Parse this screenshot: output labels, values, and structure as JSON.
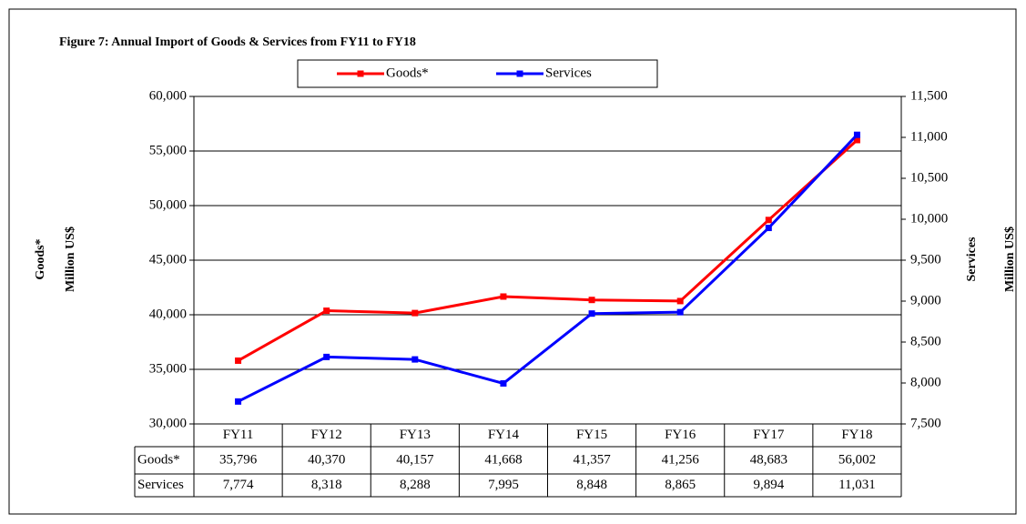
{
  "chart_data": {
    "type": "line",
    "title": "Figure 7: Annual Import of Goods & Services  from  FY11  to FY18",
    "ylabel": "Goods*",
    "ylabel_unit": "Million US$",
    "y2label": "Services",
    "y2label_unit": "Million US$",
    "categories": [
      "FY11",
      "FY12",
      "FY13",
      "FY14",
      "FY15",
      "FY16",
      "FY17",
      "FY18"
    ],
    "series": [
      {
        "name": "Goods*",
        "color": "#ff0000",
        "values": [
          35796,
          40370,
          40157,
          41668,
          41357,
          41256,
          48683,
          56002
        ],
        "value_labels": [
          "35,796",
          "40,370",
          "40,157",
          "41,668",
          "41,357",
          "41,256",
          "48,683",
          "56,002"
        ]
      },
      {
        "name": "Services",
        "color": "#0000ff",
        "axis": "y2",
        "values": [
          7774,
          8318,
          8288,
          7995,
          8848,
          8865,
          9894,
          11031
        ],
        "value_labels": [
          "7,774",
          "8,318",
          "8,288",
          "7,995",
          "8,848",
          "8,865",
          "9,894",
          "11,031"
        ]
      }
    ],
    "ylim": [
      30000,
      60000
    ],
    "yticks": [
      {
        "value": 30000,
        "label": "30,000"
      },
      {
        "value": 35000,
        "label": "35,000"
      },
      {
        "value": 40000,
        "label": "40,000"
      },
      {
        "value": 45000,
        "label": "45,000"
      },
      {
        "value": 50000,
        "label": "50,000"
      },
      {
        "value": 55000,
        "label": "55,000"
      },
      {
        "value": 60000,
        "label": "60,000"
      }
    ],
    "y2lim": [
      7500,
      11500
    ],
    "y2ticks": [
      {
        "value": 7500,
        "label": "7,500"
      },
      {
        "value": 8000,
        "label": "8,000"
      },
      {
        "value": 8500,
        "label": "8,500"
      },
      {
        "value": 9000,
        "label": "9,000"
      },
      {
        "value": 9500,
        "label": "9,500"
      },
      {
        "value": 10000,
        "label": "10,000"
      },
      {
        "value": 10500,
        "label": "10,500"
      },
      {
        "value": 11000,
        "label": "11,000"
      },
      {
        "value": 11500,
        "label": "11,500"
      }
    ],
    "grid": true,
    "legend": "top"
  }
}
